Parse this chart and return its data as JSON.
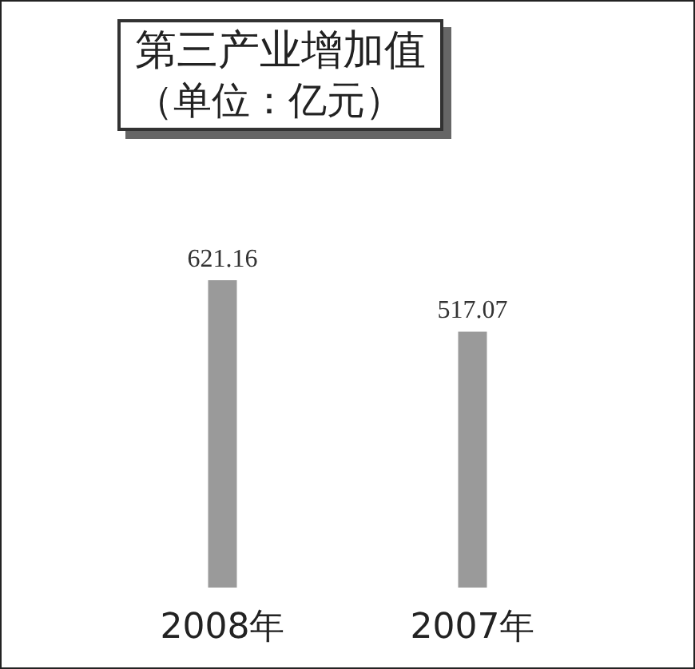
{
  "chart_data": {
    "type": "bar",
    "title": "第三产业增加值",
    "subtitle": "（单位：亿元）",
    "categories": [
      "2008年",
      "2007年"
    ],
    "values": [
      621.16,
      517.07
    ],
    "color": "#9a9a9a",
    "data_labels": true
  }
}
